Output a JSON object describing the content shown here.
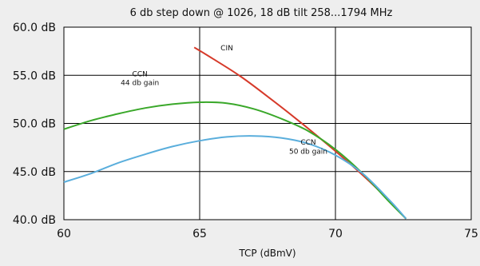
{
  "chart_data": {
    "type": "line",
    "title": "6 db step down @ 1026, 18 dB tilt 258...1794 MHz",
    "xlabel": "TCP (dBmV)",
    "ylabel": "",
    "xlim": [
      60,
      75
    ],
    "ylim": [
      40,
      60
    ],
    "x_ticks": [
      60,
      65,
      70,
      75
    ],
    "x_tick_labels": [
      "60",
      "65",
      "70",
      "75"
    ],
    "y_ticks": [
      40,
      45,
      50,
      55,
      60
    ],
    "y_tick_labels": [
      "40.0 dB",
      "45.0 dB",
      "50.0 dB",
      "55.0 dB",
      "60.0 dB"
    ],
    "grid": true,
    "series": [
      {
        "name": "CIN",
        "color": "#d63a2a",
        "x": [
          64.8,
          65.5,
          66.5,
          67.5,
          68.5,
          69.5,
          70.5,
          71.5,
          72.6
        ],
        "y": [
          57.9,
          56.7,
          54.9,
          52.8,
          50.6,
          48.3,
          45.9,
          43.3,
          40.1
        ]
      },
      {
        "name": "CCN 44 db gain",
        "color": "#3aa82a",
        "x": [
          60,
          61,
          62,
          63,
          64,
          65,
          66,
          67,
          68,
          69,
          70,
          71,
          72,
          72.6
        ],
        "y": [
          49.4,
          50.3,
          51.0,
          51.6,
          52.0,
          52.2,
          52.1,
          51.5,
          50.5,
          49.2,
          47.3,
          44.8,
          41.8,
          40.1
        ]
      },
      {
        "name": "CCN 50 db gain",
        "color": "#5aaedc",
        "x": [
          60,
          61,
          62,
          63,
          64,
          65,
          66,
          67,
          68,
          69,
          70,
          71,
          72,
          72.6
        ],
        "y": [
          43.9,
          44.8,
          45.9,
          46.8,
          47.6,
          48.2,
          48.6,
          48.7,
          48.5,
          47.9,
          46.7,
          44.8,
          42.0,
          40.1
        ]
      }
    ],
    "annotations": [
      {
        "lines": [
          "CIN"
        ],
        "x": 66.0,
        "y": 57.6
      },
      {
        "lines": [
          "CCN",
          "44 db gain"
        ],
        "x": 62.8,
        "y": 54.9
      },
      {
        "lines": [
          "CCN",
          "50 db gain"
        ],
        "x": 69.0,
        "y": 47.8
      }
    ]
  }
}
